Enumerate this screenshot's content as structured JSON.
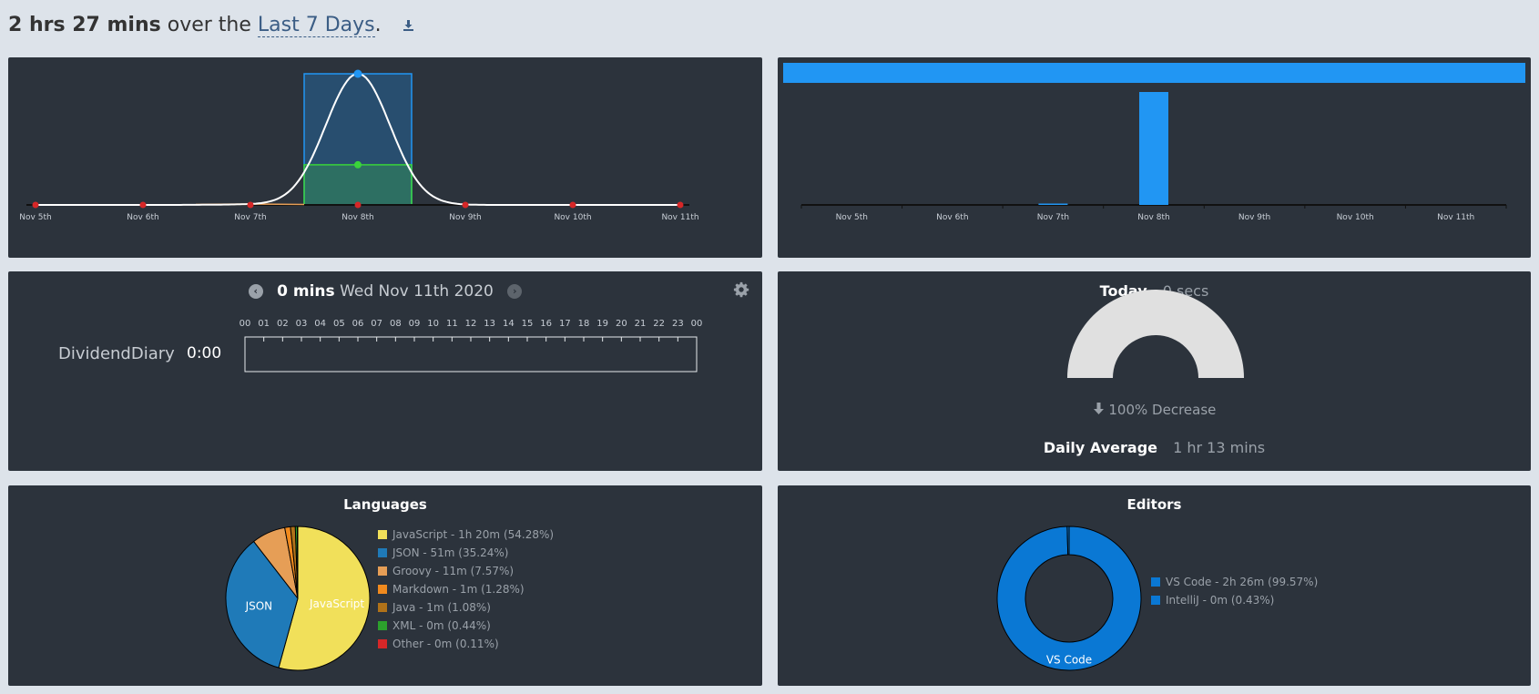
{
  "header": {
    "total": "2 hrs 27 mins",
    "over_the": "over the",
    "range": "Last 7 Days",
    "period": "."
  },
  "colors": {
    "panel": "#2c333c",
    "accent_blue": "#2196f3",
    "green": "#3ad43a",
    "javascript": "#f1e05a",
    "json": "#1f7ab8",
    "groovy": "#e69e56",
    "markdown": "#f18a1e",
    "java": "#b07219",
    "xml": "#2ca02c",
    "other": "#d62728",
    "vscode": "#0a78d4",
    "gauge": "#e0e0e0"
  },
  "chart_data": [
    {
      "type": "area",
      "categories": [
        "Nov 5th",
        "Nov 6th",
        "Nov 7th",
        "Nov 8th",
        "Nov 9th",
        "Nov 10th",
        "Nov 11th"
      ],
      "series": [
        {
          "values": [
            0,
            0,
            0.5,
            147,
            0,
            0,
            0
          ]
        },
        {
          "values": [
            0,
            0,
            0,
            45,
            0,
            0,
            0
          ]
        },
        {
          "values": [
            0,
            0,
            0,
            0,
            0,
            0,
            0
          ]
        }
      ],
      "highlight_category": "Nov 8th"
    },
    {
      "type": "bar",
      "categories": [
        "Nov 5th",
        "Nov 6th",
        "Nov 7th",
        "Nov 8th",
        "Nov 9th",
        "Nov 10th",
        "Nov 11th"
      ],
      "values": [
        0,
        0,
        0.5,
        147,
        0,
        0,
        0
      ],
      "ylim": [
        0,
        147
      ]
    },
    {
      "type": "pie",
      "title": "Languages",
      "slices": [
        {
          "label": "JavaScript",
          "legend": "JavaScript - 1h 20m (54.28%)",
          "value": 54.28,
          "color_key": "javascript",
          "inner_label": "JavaScript"
        },
        {
          "label": "JSON",
          "legend": "JSON - 51m (35.24%)",
          "value": 35.24,
          "color_key": "json",
          "inner_label": "JSON"
        },
        {
          "label": "Groovy",
          "legend": "Groovy - 11m (7.57%)",
          "value": 7.57,
          "color_key": "groovy"
        },
        {
          "label": "Markdown",
          "legend": "Markdown - 1m (1.28%)",
          "value": 1.28,
          "color_key": "markdown"
        },
        {
          "label": "Java",
          "legend": "Java - 1m (1.08%)",
          "value": 1.08,
          "color_key": "java"
        },
        {
          "label": "XML",
          "legend": "XML - 0m (0.44%)",
          "value": 0.44,
          "color_key": "xml"
        },
        {
          "label": "Other",
          "legend": "Other - 0m (0.11%)",
          "value": 0.11,
          "color_key": "other"
        }
      ]
    },
    {
      "type": "pie",
      "title": "Editors",
      "donut": true,
      "slices": [
        {
          "label": "VS Code",
          "legend": "VS Code - 2h 26m (99.57%)",
          "value": 99.57,
          "color_key": "vscode",
          "inner_label": "VS Code"
        },
        {
          "label": "IntelliJ",
          "legend": "IntelliJ - 0m (0.43%)",
          "value": 0.43,
          "color_key": "vscode"
        }
      ]
    }
  ],
  "day": {
    "mins": "0 mins",
    "date": "Wed Nov 11th 2020",
    "hours": [
      "00",
      "01",
      "02",
      "03",
      "04",
      "05",
      "06",
      "07",
      "08",
      "09",
      "10",
      "11",
      "12",
      "13",
      "14",
      "15",
      "16",
      "17",
      "18",
      "19",
      "20",
      "21",
      "22",
      "23",
      "00"
    ],
    "project": "DividendDiary",
    "project_time": "0:00"
  },
  "today": {
    "label": "Today",
    "value": "0 secs",
    "decrease": "100% Decrease",
    "avg_label": "Daily Average",
    "avg_value": "1 hr 13 mins"
  },
  "icons": {
    "download": "download-icon",
    "prev": "chevron-left-circle-icon",
    "next": "chevron-right-circle-icon",
    "settings": "gear-icon",
    "arrow": "arrow-down-icon"
  }
}
